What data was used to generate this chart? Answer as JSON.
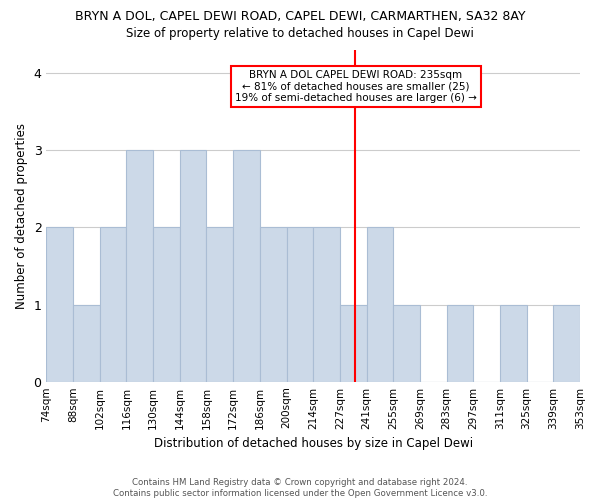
{
  "title": "BRYN A DOL, CAPEL DEWI ROAD, CAPEL DEWI, CARMARTHEN, SA32 8AY",
  "subtitle": "Size of property relative to detached houses in Capel Dewi",
  "xlabel": "Distribution of detached houses by size in Capel Dewi",
  "ylabel": "Number of detached properties",
  "footnote": "Contains HM Land Registry data © Crown copyright and database right 2024.\nContains public sector information licensed under the Open Government Licence v3.0.",
  "bin_labels": [
    "74sqm",
    "88sqm",
    "102sqm",
    "116sqm",
    "130sqm",
    "144sqm",
    "158sqm",
    "172sqm",
    "186sqm",
    "200sqm",
    "214sqm",
    "227sqm",
    "241sqm",
    "255sqm",
    "269sqm",
    "283sqm",
    "297sqm",
    "311sqm",
    "325sqm",
    "339sqm",
    "353sqm"
  ],
  "values": [
    2,
    1,
    2,
    3,
    2,
    3,
    2,
    3,
    2,
    2,
    2,
    1,
    2,
    1,
    0,
    1,
    0,
    1,
    0,
    1
  ],
  "bar_color": "#ccd9e8",
  "bar_edge_color": "#aabdd4",
  "grid_color": "#cccccc",
  "reference_line_color": "red",
  "reference_line_label_idx": 11.65,
  "annotation_text": "BRYN A DOL CAPEL DEWI ROAD: 235sqm\n← 81% of detached houses are smaller (25)\n19% of semi-detached houses are larger (6) →",
  "annotation_box_color": "white",
  "annotation_box_edge_color": "red",
  "ylim": [
    0,
    4.3
  ],
  "yticks": [
    0,
    1,
    2,
    3,
    4
  ],
  "background_color": "white"
}
